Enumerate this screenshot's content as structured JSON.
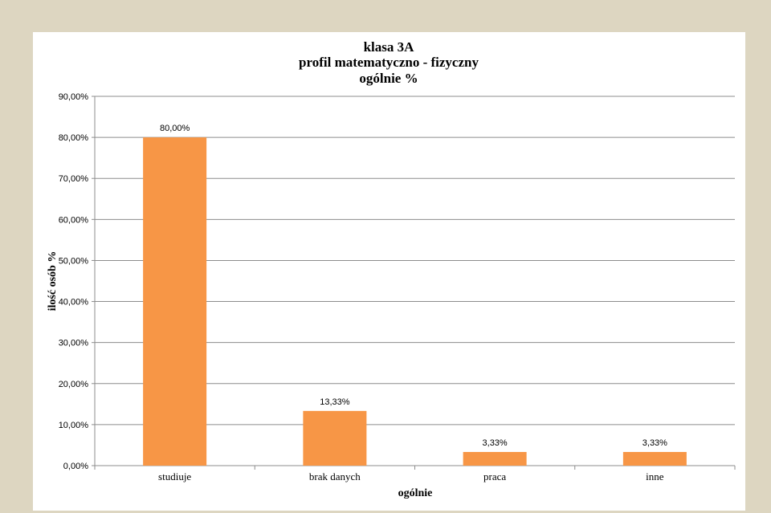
{
  "chart_data": {
    "type": "bar",
    "title_lines": [
      "klasa 3A",
      "profil matematyczno - fizyczny",
      "ogólnie %"
    ],
    "xlabel": "ogólnie",
    "ylabel": "ilość osób %",
    "categories": [
      "studiuje",
      "brak danych",
      "praca",
      "inne"
    ],
    "values": [
      80.0,
      13.33,
      3.33,
      3.33
    ],
    "value_labels": [
      "80,00%",
      "13,33%",
      "3,33%",
      "3,33%"
    ],
    "ylim": [
      0,
      90
    ],
    "yticks": [
      0,
      10,
      20,
      30,
      40,
      50,
      60,
      70,
      80,
      90
    ],
    "ytick_labels": [
      "0,00%",
      "10,00%",
      "20,00%",
      "30,00%",
      "40,00%",
      "50,00%",
      "60,00%",
      "70,00%",
      "80,00%",
      "90,00%"
    ],
    "grid": true,
    "legend": false,
    "bar_color": "#f79646"
  },
  "colors": {
    "background": "#ddd6c1",
    "panel": "#ffffff",
    "gridline": "#8c8c8c"
  }
}
